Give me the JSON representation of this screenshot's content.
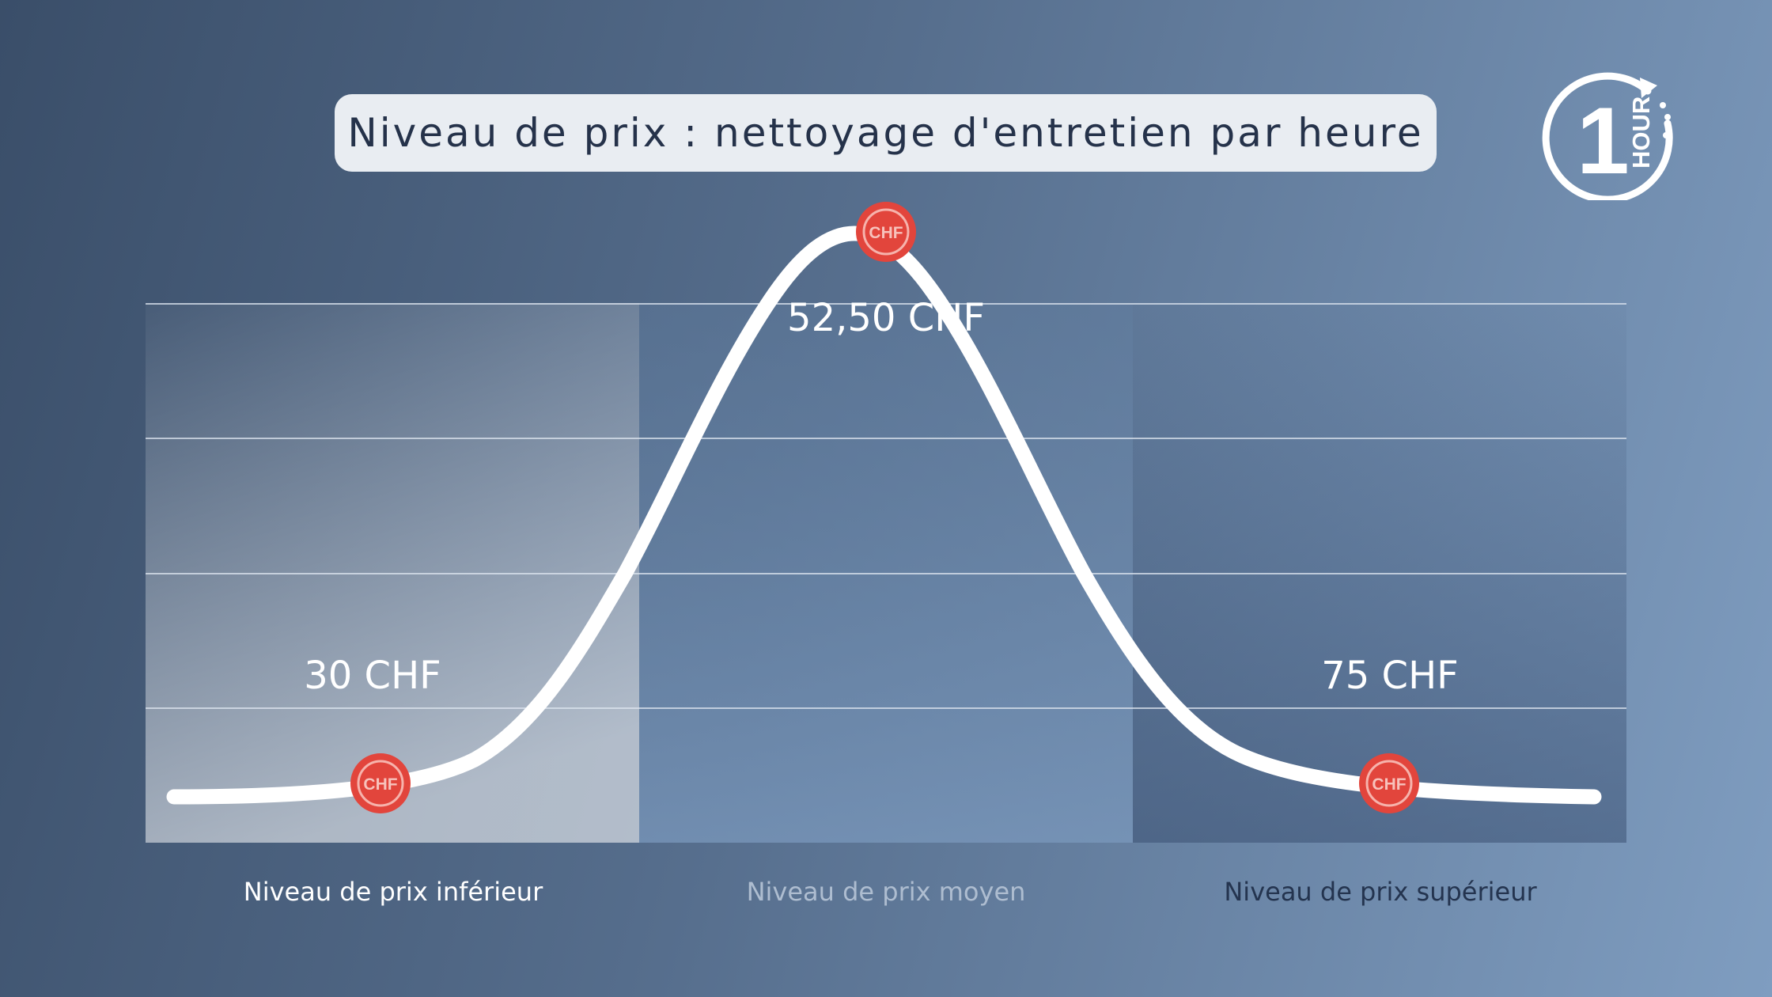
{
  "title": "Niveau de prix : nettoyage d'entretien par heure",
  "logo": {
    "numeral": "1",
    "word": "HOUR",
    "icon": "1-hour-clock-logo"
  },
  "chart_data": {
    "type": "line",
    "title": "Niveau de prix : nettoyage d'entretien par heure",
    "xlabel": "",
    "ylabel": "",
    "grid": true,
    "categories": [
      "Niveau de prix inférieur",
      "Niveau de prix moyen",
      "Niveau de prix supérieur"
    ],
    "points": [
      {
        "category": "Niveau de prix inférieur",
        "value": 30,
        "label": "30 CHF",
        "marker": "CHF"
      },
      {
        "category": "Niveau de prix moyen",
        "value": 52.5,
        "label": "52,50 CHF",
        "marker": "CHF"
      },
      {
        "category": "Niveau de prix supérieur",
        "value": 75,
        "label": "75 CHF",
        "marker": "CHF"
      }
    ],
    "curve": "bell-shaped price distribution peaking at the average price level",
    "colors": {
      "curve": "#ffffff",
      "marker": "#e2453c",
      "title_box": "#e9edf2",
      "title_text": "#25324a"
    }
  }
}
